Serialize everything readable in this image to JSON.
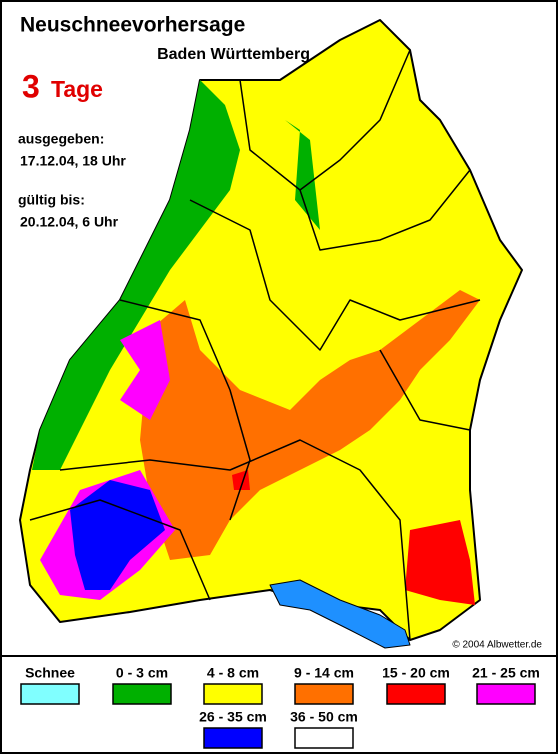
{
  "header": {
    "title": "Neuschneevorhersage",
    "subtitle": "Baden Württemberg",
    "days": "3",
    "days_unit": "Tage"
  },
  "issued": {
    "label": "ausgegeben:",
    "value": "17.12.04, 18 Uhr"
  },
  "valid": {
    "label": "gültig bis:",
    "value": "20.12.04, 6 Uhr"
  },
  "copyright": "© 2004 Albwetter.de",
  "legend": [
    {
      "label": "Schnee",
      "color": "#80ffff"
    },
    {
      "label": "0 - 3 cm",
      "color": "#00b000"
    },
    {
      "label": "4 - 8 cm",
      "color": "#ffff00"
    },
    {
      "label": "9 - 14 cm",
      "color": "#ff7000"
    },
    {
      "label": "15 - 20 cm",
      "color": "#ff0000"
    },
    {
      "label": "21 - 25 cm",
      "color": "#ff00ff"
    },
    {
      "label": "26 - 35 cm",
      "color": "#0000ff"
    },
    {
      "label": "36 - 50 cm",
      "color": "#ffffff"
    }
  ]
}
